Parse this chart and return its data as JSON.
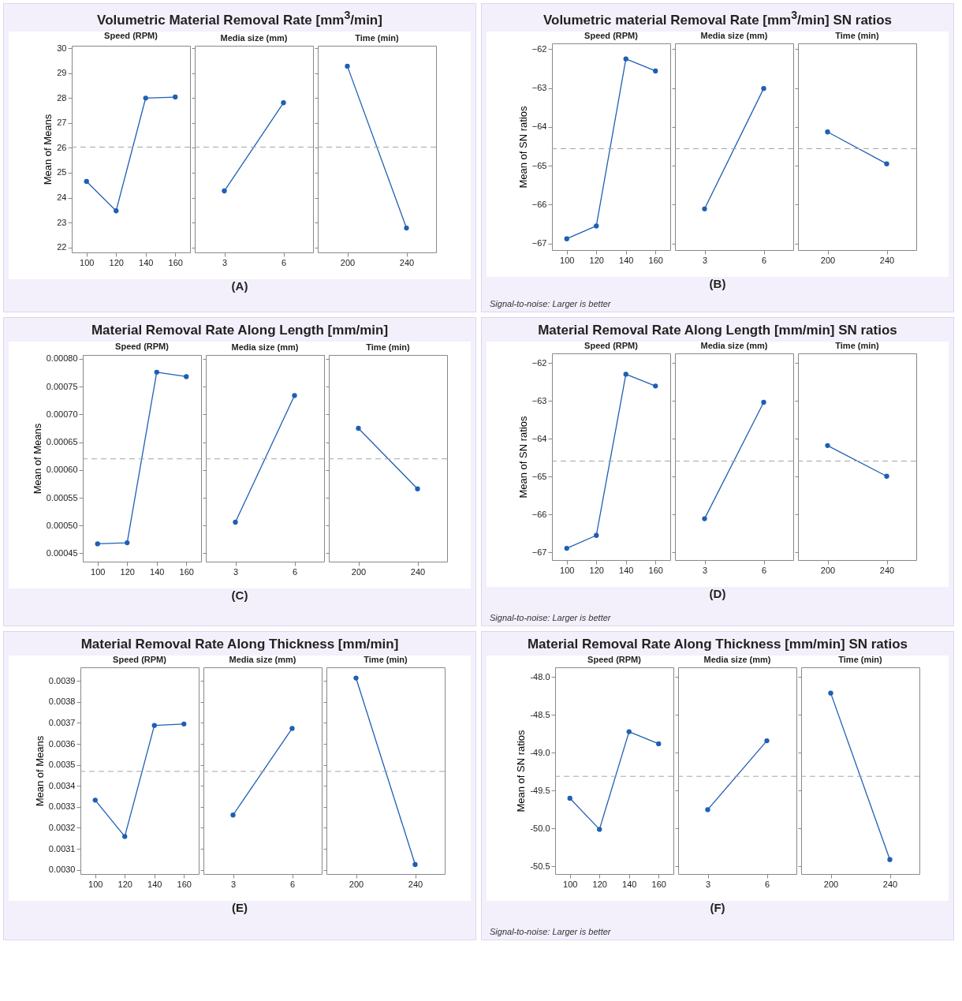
{
  "chart_data": [
    {
      "type": "line",
      "title": "Volumetric Material Removal Rate [mm$^{3}$/min]",
      "ylabel": "Mean of Means",
      "annotations": [
        "(A)"
      ],
      "subtitle": "Speed (RPM)",
      "categories": [
        "100",
        "120",
        "140",
        "160"
      ],
      "series": [
        {
          "color": "#1f5fb4",
          "values": [
            24.65,
            23.47,
            28.0,
            28.04
          ]
        }
      ],
      "ylim": [
        21.8,
        30.1
      ],
      "yticks": [
        22,
        23,
        24,
        25,
        26,
        27,
        28,
        29,
        30
      ],
      "ref_lines": [
        {
          "axis": "y",
          "value": 26.03,
          "color": "#a6a6a6",
          "line_style": "dashed"
        }
      ],
      "marker": "circle"
    },
    {
      "type": "line",
      "subtitle": "Media size (mm)",
      "categories": [
        "3",
        "6"
      ],
      "series": [
        {
          "color": "#1f5fb4",
          "values": [
            24.27,
            27.81
          ]
        }
      ],
      "ylim": [
        21.8,
        30.1
      ],
      "yticks": [
        22,
        23,
        24,
        25,
        26,
        27,
        28,
        29,
        30
      ],
      "ref_lines": [
        {
          "axis": "y",
          "value": 26.03,
          "color": "#a6a6a6",
          "line_style": "dashed"
        }
      ],
      "marker": "circle",
      "tick_labels": "x"
    },
    {
      "type": "line",
      "subtitle": "Time (min)",
      "categories": [
        "200",
        "240"
      ],
      "series": [
        {
          "color": "#1f5fb4",
          "values": [
            29.28,
            22.78
          ]
        }
      ],
      "ylim": [
        21.8,
        30.1
      ],
      "yticks": [
        22,
        23,
        24,
        25,
        26,
        27,
        28,
        29,
        30
      ],
      "ref_lines": [
        {
          "axis": "y",
          "value": 26.03,
          "color": "#a6a6a6",
          "line_style": "dashed"
        }
      ],
      "marker": "circle",
      "tick_labels": "x"
    },
    {
      "type": "line",
      "title": "Volumetric material Removal Rate [mm$^{3}$/min] SN ratios",
      "ylabel": "Mean of SN ratios",
      "annotations": [
        "(B)",
        "Signal-to-noise: Larger is better"
      ],
      "subtitle": "Speed (RPM)",
      "categories": [
        "100",
        "120",
        "140",
        "160"
      ],
      "series": [
        {
          "color": "#1f5fb4",
          "values": [
            -66.88,
            -66.55,
            -62.25,
            -62.56
          ]
        }
      ],
      "ylim": [
        -67.17,
        -61.85
      ],
      "yticks": [
        -67,
        -66,
        -65,
        -64,
        -63,
        -62
      ],
      "ref_lines": [
        {
          "axis": "y",
          "value": -64.56,
          "color": "#a6a6a6",
          "line_style": "dashed"
        }
      ],
      "marker": "circle"
    },
    {
      "type": "line",
      "subtitle": "Media size (mm)",
      "categories": [
        "3",
        "6"
      ],
      "series": [
        {
          "color": "#1f5fb4",
          "values": [
            -66.11,
            -63.01
          ]
        }
      ],
      "ylim": [
        -67.17,
        -61.85
      ],
      "yticks": [
        -67,
        -66,
        -65,
        -64,
        -63,
        -62
      ],
      "ref_lines": [
        {
          "axis": "y",
          "value": -64.56,
          "color": "#a6a6a6",
          "line_style": "dashed"
        }
      ],
      "marker": "circle",
      "tick_labels": "x"
    },
    {
      "type": "line",
      "subtitle": "Time (min)",
      "categories": [
        "200",
        "240"
      ],
      "series": [
        {
          "color": "#1f5fb4",
          "values": [
            -64.13,
            -64.95
          ]
        }
      ],
      "ylim": [
        -67.17,
        -61.85
      ],
      "yticks": [
        -67,
        -66,
        -65,
        -64,
        -63,
        -62
      ],
      "ref_lines": [
        {
          "axis": "y",
          "value": -64.56,
          "color": "#a6a6a6",
          "line_style": "dashed"
        }
      ],
      "marker": "circle",
      "tick_labels": "x"
    },
    {
      "type": "line",
      "title": "Material Removal Rate Along Length [mm/min]",
      "ylabel": "Mean of Means",
      "annotations": [
        "(C)"
      ],
      "subtitle": "Speed (RPM)",
      "categories": [
        "100",
        "120",
        "140",
        "160"
      ],
      "series": [
        {
          "color": "#1f5fb4",
          "values": [
            0.000467,
            0.000469,
            0.000776,
            0.000768
          ]
        }
      ],
      "ylim": [
        0.000435,
        0.000807
      ],
      "yticks": [
        {
          "value": 0.00045,
          "label": "0.00045"
        },
        {
          "value": 0.0005,
          "label": "0.00050"
        },
        {
          "value": 0.00055,
          "label": "0.00055"
        },
        {
          "value": 0.0006,
          "label": "0.00060"
        },
        {
          "value": 0.00065,
          "label": "0.00065"
        },
        {
          "value": 0.0007,
          "label": "0.00070"
        },
        {
          "value": 0.00075,
          "label": "0.00075"
        },
        {
          "value": 0.0008,
          "label": "0.00080"
        }
      ],
      "ref_lines": [
        {
          "axis": "y",
          "value": 0.00062,
          "color": "#a6a6a6",
          "line_style": "dashed"
        }
      ],
      "marker": "circle"
    },
    {
      "type": "line",
      "subtitle": "Media size (mm)",
      "categories": [
        "3",
        "6"
      ],
      "series": [
        {
          "color": "#1f5fb4",
          "values": [
            0.000506,
            0.000734
          ]
        }
      ],
      "ylim": [
        0.000435,
        0.000807
      ],
      "yticks": [
        0.00045,
        0.0005,
        0.00055,
        0.0006,
        0.00065,
        0.0007,
        0.00075,
        0.0008
      ],
      "ref_lines": [
        {
          "axis": "y",
          "value": 0.00062,
          "color": "#a6a6a6",
          "line_style": "dashed"
        }
      ],
      "marker": "circle",
      "tick_labels": "x"
    },
    {
      "type": "line",
      "subtitle": "Time (min)",
      "categories": [
        "200",
        "240"
      ],
      "series": [
        {
          "color": "#1f5fb4",
          "values": [
            0.000675,
            0.000566
          ]
        }
      ],
      "ylim": [
        0.000435,
        0.000807
      ],
      "yticks": [
        0.00045,
        0.0005,
        0.00055,
        0.0006,
        0.00065,
        0.0007,
        0.00075,
        0.0008
      ],
      "ref_lines": [
        {
          "axis": "y",
          "value": 0.00062,
          "color": "#a6a6a6",
          "line_style": "dashed"
        }
      ],
      "marker": "circle",
      "tick_labels": "x"
    },
    {
      "type": "line",
      "title": "Material Removal Rate Along Length [mm/min] SN ratios",
      "ylabel": "Mean of SN ratios",
      "annotations": [
        "(D)",
        "Signal-to-noise: Larger is better"
      ],
      "subtitle": "Speed (RPM)",
      "categories": [
        "100",
        "120",
        "140",
        "160"
      ],
      "series": [
        {
          "color": "#1f5fb4",
          "values": [
            -66.89,
            -66.55,
            -62.3,
            -62.61
          ]
        }
      ],
      "ylim": [
        -67.2,
        -61.75
      ],
      "yticks": [
        -67,
        -66,
        -65,
        -64,
        -63,
        -62
      ],
      "ref_lines": [
        {
          "axis": "y",
          "value": -64.59,
          "color": "#a6a6a6",
          "line_style": "dashed"
        }
      ],
      "marker": "circle"
    },
    {
      "type": "line",
      "subtitle": "Media size (mm)",
      "categories": [
        "3",
        "6"
      ],
      "series": [
        {
          "color": "#1f5fb4",
          "values": [
            -66.11,
            -63.04
          ]
        }
      ],
      "ylim": [
        -67.2,
        -61.75
      ],
      "yticks": [
        -67,
        -66,
        -65,
        -64,
        -63,
        -62
      ],
      "ref_lines": [
        {
          "axis": "y",
          "value": -64.59,
          "color": "#a6a6a6",
          "line_style": "dashed"
        }
      ],
      "marker": "circle",
      "tick_labels": "x"
    },
    {
      "type": "line",
      "subtitle": "Time (min)",
      "categories": [
        "200",
        "240"
      ],
      "series": [
        {
          "color": "#1f5fb4",
          "values": [
            -64.18,
            -64.99
          ]
        }
      ],
      "ylim": [
        -67.2,
        -61.75
      ],
      "yticks": [
        -67,
        -66,
        -65,
        -64,
        -63,
        -62
      ],
      "ref_lines": [
        {
          "axis": "y",
          "value": -64.59,
          "color": "#a6a6a6",
          "line_style": "dashed"
        }
      ],
      "marker": "circle",
      "tick_labels": "x"
    },
    {
      "type": "line",
      "title": "Material Removal Rate Along Thickness [mm/min]",
      "ylabel": "Mean of Means",
      "annotations": [
        "(E)"
      ],
      "subtitle": "Speed (RPM)",
      "categories": [
        "100",
        "120",
        "140",
        "160"
      ],
      "series": [
        {
          "color": "#1f5fb4",
          "values": [
            0.003332,
            0.003159,
            0.003688,
            0.003695
          ]
        }
      ],
      "ylim": [
        0.00298,
        0.003965
      ],
      "yticks": [
        {
          "value": 0.003,
          "label": "0.0030"
        },
        0.0031,
        0.0032,
        0.0033,
        0.0034,
        0.0035,
        0.0036,
        0.0037,
        0.0038,
        0.0039
      ],
      "ref_lines": [
        {
          "axis": "y",
          "value": 0.003469,
          "color": "#a6a6a6",
          "line_style": "dashed"
        }
      ],
      "marker": "circle"
    },
    {
      "type": "line",
      "subtitle": "Media size (mm)",
      "categories": [
        "3",
        "6"
      ],
      "series": [
        {
          "color": "#1f5fb4",
          "values": [
            0.003261,
            0.003674
          ]
        }
      ],
      "ylim": [
        0.00298,
        0.003965
      ],
      "yticks": [
        0.003,
        0.0031,
        0.0032,
        0.0033,
        0.0034,
        0.0035,
        0.0036,
        0.0037,
        0.0038,
        0.0039
      ],
      "ref_lines": [
        {
          "axis": "y",
          "value": 0.003469,
          "color": "#a6a6a6",
          "line_style": "dashed"
        }
      ],
      "marker": "circle",
      "tick_labels": "x"
    },
    {
      "type": "line",
      "subtitle": "Time (min)",
      "categories": [
        "200",
        "240"
      ],
      "series": [
        {
          "color": "#1f5fb4",
          "values": [
            0.003914,
            0.003025
          ]
        }
      ],
      "ylim": [
        0.00298,
        0.003965
      ],
      "yticks": [
        0.003,
        0.0031,
        0.0032,
        0.0033,
        0.0034,
        0.0035,
        0.0036,
        0.0037,
        0.0038,
        0.0039
      ],
      "ref_lines": [
        {
          "axis": "y",
          "value": 0.003469,
          "color": "#a6a6a6",
          "line_style": "dashed"
        }
      ],
      "marker": "circle",
      "tick_labels": "x"
    },
    {
      "type": "line",
      "title": "Material Removal Rate Along Thickness [mm/min] SN ratios",
      "ylabel": "Mean of SN ratios",
      "annotations": [
        "(F)",
        "Signal-to-noise: Larger is better"
      ],
      "subtitle": "Speed (RPM)",
      "categories": [
        "100",
        "120",
        "140",
        "160"
      ],
      "series": [
        {
          "color": "#1f5fb4",
          "values": [
            -49.6,
            -50.01,
            -48.72,
            -48.88
          ]
        }
      ],
      "ylim": [
        -50.6,
        -47.87
      ],
      "yticks": [
        {
          "value": -50.5,
          "label": "-50.5"
        },
        {
          "value": -50,
          "label": "-50.0"
        },
        {
          "value": -49.5,
          "label": "-49.5"
        },
        {
          "value": -49,
          "label": "-49.0"
        },
        {
          "value": -48.5,
          "label": "-48.5"
        },
        {
          "value": -48,
          "label": "-48.0"
        }
      ],
      "ref_lines": [
        {
          "axis": "y",
          "value": -49.31,
          "color": "#a6a6a6",
          "line_style": "dashed"
        }
      ],
      "marker": "circle"
    },
    {
      "type": "line",
      "subtitle": "Media size (mm)",
      "categories": [
        "3",
        "6"
      ],
      "series": [
        {
          "color": "#1f5fb4",
          "values": [
            -49.75,
            -48.84
          ]
        }
      ],
      "ylim": [
        -50.6,
        -47.87
      ],
      "yticks": [
        -50.5,
        -50,
        -49.5,
        -49,
        -48.5,
        -48
      ],
      "ref_lines": [
        {
          "axis": "y",
          "value": -49.31,
          "color": "#a6a6a6",
          "line_style": "dashed"
        }
      ],
      "marker": "circle",
      "tick_labels": "x"
    },
    {
      "type": "line",
      "subtitle": "Time (min)",
      "categories": [
        "200",
        "240"
      ],
      "series": [
        {
          "color": "#1f5fb4",
          "values": [
            -48.21,
            -50.41
          ]
        }
      ],
      "ylim": [
        -50.6,
        -47.87
      ],
      "yticks": [
        -50.5,
        -50,
        -49.5,
        -49,
        -48.5,
        -48
      ],
      "ref_lines": [
        {
          "axis": "y",
          "value": -49.31,
          "color": "#a6a6a6",
          "line_style": "dashed"
        }
      ],
      "marker": "circle",
      "tick_labels": "x"
    }
  ]
}
